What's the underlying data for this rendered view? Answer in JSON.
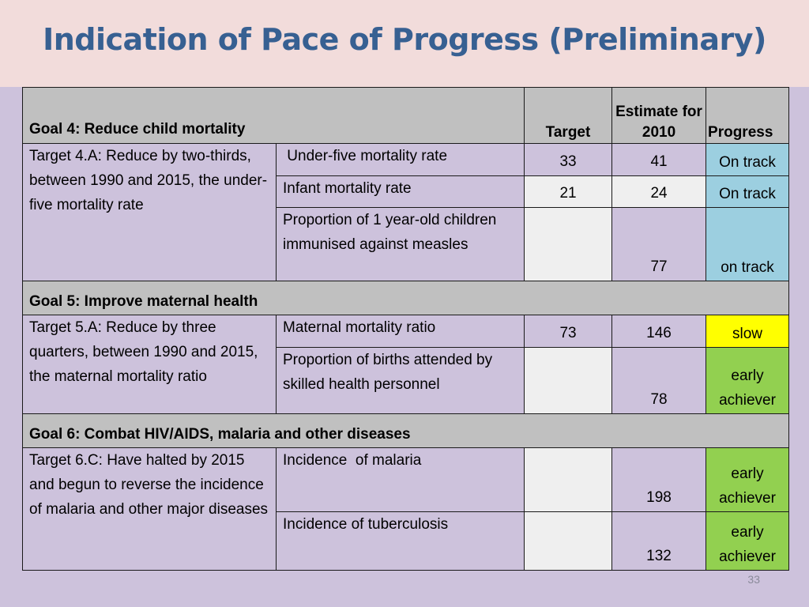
{
  "title": "Indication of Pace of Progress (Preliminary)",
  "header": {
    "goal": "Goal 4: Reduce child mortality",
    "target": "Target",
    "estimate": "Estimate for 2010",
    "progress": "Progress"
  },
  "goal4": {
    "target_text": "Target 4.A: Reduce by two-thirds, between 1990 and 2015, the under-five mortality rate",
    "rows": [
      {
        "indicator": " Under-five mortality rate",
        "target": "33",
        "estimate": "41",
        "progress": "On track"
      },
      {
        "indicator": "Infant mortality rate",
        "target": "21",
        "estimate": "24",
        "progress": "On track"
      },
      {
        "indicator": "Proportion of 1 year-old children immunised against measles",
        "target": "",
        "estimate": "77",
        "progress": "on track"
      }
    ]
  },
  "goal5": {
    "heading": "Goal 5: Improve maternal health",
    "target_text": "Target 5.A: Reduce by three quarters, between 1990 and 2015, the maternal mortality ratio",
    "rows": [
      {
        "indicator": "Maternal mortality ratio",
        "target": "73",
        "estimate": "146",
        "progress": "slow"
      },
      {
        "indicator": "Proportion of births attended by skilled health personnel",
        "target": "",
        "estimate": "78",
        "progress": "early achiever"
      }
    ]
  },
  "goal6": {
    "heading": "Goal 6: Combat HIV/AIDS, malaria and other diseases",
    "target_text": "Target 6.C: Have halted by 2015 and begun to reverse the incidence of malaria and other major diseases",
    "rows": [
      {
        "indicator": "Incidence  of malaria",
        "target": "",
        "estimate": "198",
        "progress": "early achiever"
      },
      {
        "indicator": "Incidence of tuberculosis",
        "target": "",
        "estimate": "132",
        "progress": "early achiever"
      }
    ]
  },
  "page_number": "33",
  "colors": {
    "on_track": "#9ccfe0",
    "slow": "#ffff00",
    "early_achiever": "#92d050",
    "title": "#376092"
  }
}
